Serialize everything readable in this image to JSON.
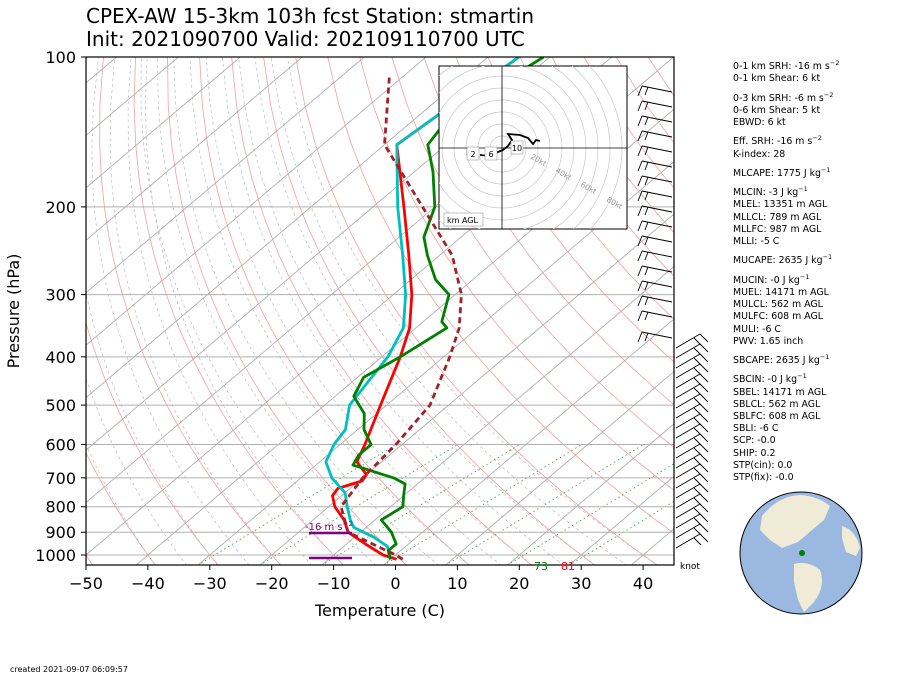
{
  "title_line1": "CPEX-AW 15-3km  103h fcst  Station: stmartin",
  "title_line2": "Init: 2021090700  Valid: 202109110700 UTC",
  "created": "created 2021-09-07 06:09:57",
  "chart_data": {
    "type": "line",
    "subtype": "skew-t log-p",
    "xlabel": "Temperature (C)",
    "ylabel": "Pressure (hPa)",
    "x_ticks": [
      -50,
      -40,
      -30,
      -20,
      -10,
      0,
      10,
      20,
      30,
      40
    ],
    "y_ticks": [
      100,
      200,
      300,
      400,
      500,
      600,
      700,
      800,
      900,
      1000
    ],
    "xlim": [
      -50,
      45
    ],
    "ylim": [
      1050,
      100
    ],
    "y_scale": "log",
    "grid": true,
    "series": [
      {
        "color": "#ff0000",
        "points": [
          [
            -25,
            100
          ],
          [
            -28,
            150
          ],
          [
            -15,
            200
          ],
          [
            -5,
            250
          ],
          [
            3,
            300
          ],
          [
            9,
            350
          ],
          [
            13,
            400
          ],
          [
            19,
            500
          ],
          [
            24,
            600
          ],
          [
            26,
            650
          ],
          [
            30,
            690
          ],
          [
            30.5,
            710
          ],
          [
            28,
            735
          ],
          [
            28.5,
            760
          ],
          [
            31,
            800
          ],
          [
            35,
            850
          ],
          [
            38,
            900
          ],
          [
            43,
            950
          ],
          [
            48,
            1000
          ],
          [
            51,
            1020
          ]
        ]
      },
      {
        "color": "#00bfbf",
        "points": [
          [
            -25,
            100
          ],
          [
            -28,
            150
          ],
          [
            -16,
            200
          ],
          [
            -6,
            250
          ],
          [
            2,
            300
          ],
          [
            8,
            350
          ],
          [
            11,
            400
          ],
          [
            14,
            500
          ],
          [
            18,
            560
          ],
          [
            19,
            600
          ],
          [
            21,
            650
          ],
          [
            25,
            700
          ],
          [
            30,
            750
          ],
          [
            33,
            800
          ],
          [
            36,
            850
          ],
          [
            38,
            880
          ],
          [
            43,
            920
          ],
          [
            47,
            960
          ],
          [
            49,
            1000
          ],
          [
            50,
            1020
          ]
        ]
      },
      {
        "color": "#008000",
        "points": [
          [
            -21,
            100
          ],
          [
            -25,
            130
          ],
          [
            -23,
            150
          ],
          [
            -17,
            170
          ],
          [
            -10,
            200
          ],
          [
            -6,
            230
          ],
          [
            -2,
            250
          ],
          [
            4,
            280
          ],
          [
            9,
            300
          ],
          [
            13,
            340
          ],
          [
            15,
            350
          ],
          [
            13,
            400
          ],
          [
            11,
            440
          ],
          [
            13,
            480
          ],
          [
            18,
            520
          ],
          [
            21,
            560
          ],
          [
            25,
            600
          ],
          [
            25,
            630
          ],
          [
            26,
            660
          ],
          [
            35,
            700
          ],
          [
            38,
            720
          ],
          [
            40,
            760
          ],
          [
            42,
            800
          ],
          [
            41,
            850
          ],
          [
            45,
            900
          ],
          [
            48,
            950
          ],
          [
            48,
            980
          ],
          [
            50,
            1020
          ]
        ]
      },
      {
        "color": "#a0222a",
        "dash": "6,4",
        "points": [
          [
            -42,
            110
          ],
          [
            -30,
            150
          ],
          [
            -12,
            200
          ],
          [
            2,
            250
          ],
          [
            11,
            300
          ],
          [
            17,
            350
          ],
          [
            21,
            400
          ],
          [
            27,
            500
          ],
          [
            29,
            600
          ],
          [
            30,
            700
          ],
          [
            32,
            800
          ],
          [
            38,
            900
          ],
          [
            50,
            1000
          ],
          [
            52,
            1020
          ]
        ]
      }
    ],
    "hodograph": {
      "range_labels": [
        "20kt",
        "40kt",
        "60kt",
        "80kt"
      ],
      "height_labels": [
        "2",
        "6",
        "10"
      ],
      "legend": "km AGL"
    },
    "srh_markers": [
      {
        "label": "-16 m s",
        "exponent": "−2",
        "color": "#800080"
      }
    ],
    "surface_labels": [
      {
        "text": "73",
        "color": "#008000"
      },
      {
        "text": "81",
        "color": "#ff0000"
      }
    ],
    "barb_unit": "knot"
  },
  "indices": [
    {
      "text": "0-1 km SRH: -16 m s",
      "sup": "−2",
      "gap": false
    },
    {
      "text": "0-1 km Shear: 6 kt",
      "gap": false
    },
    {
      "text": "0-3 km SRH: -6 m s",
      "sup": "−2",
      "gap": true
    },
    {
      "text": "0-6 km Shear: 5 kt",
      "gap": false
    },
    {
      "text": "EBWD: 6 kt",
      "gap": false
    },
    {
      "text": "Eff. SRH: -16 m s",
      "sup": "−2",
      "gap": true
    },
    {
      "text": "K-index: 28",
      "gap": false
    },
    {
      "text": "MLCAPE: 1775 J kg",
      "sup": "−1",
      "gap": true
    },
    {
      "text": "MLCIN: -3 J kg",
      "sup": "−1",
      "gap": true
    },
    {
      "text": "MLEL: 13351 m AGL",
      "gap": false
    },
    {
      "text": "MLLCL: 789 m AGL",
      "gap": false
    },
    {
      "text": "MLLFC: 987 m AGL",
      "gap": false
    },
    {
      "text": "MLLI: -5 C",
      "gap": false
    },
    {
      "text": "MUCAPE: 2635 J kg",
      "sup": "−1",
      "gap": true
    },
    {
      "text": "MUCIN: -0 J kg",
      "sup": "−1",
      "gap": true
    },
    {
      "text": "MUEL: 14171 m AGL",
      "gap": false
    },
    {
      "text": "MULCL: 562 m AGL",
      "gap": false
    },
    {
      "text": "MULFC: 608 m AGL",
      "gap": false
    },
    {
      "text": "MULI: -6 C",
      "gap": false
    },
    {
      "text": "PWV: 1.65 inch",
      "gap": false
    },
    {
      "text": "SBCAPE: 2635 J kg",
      "sup": "−1",
      "gap": true
    },
    {
      "text": "SBCIN: -0 J kg",
      "sup": "−1",
      "gap": true
    },
    {
      "text": "SBEL: 14171 m AGL",
      "gap": false
    },
    {
      "text": "SBLCL: 562 m AGL",
      "gap": false
    },
    {
      "text": "SBLFC: 608 m AGL",
      "gap": false
    },
    {
      "text": "SBLI: -6 C",
      "gap": false
    },
    {
      "text": "SCP: -0.0",
      "gap": false
    },
    {
      "text": "SHIP: 0.2",
      "gap": false
    },
    {
      "text": "STP(cin): 0.0",
      "gap": false
    },
    {
      "text": "STP(fix): -0.0",
      "gap": false
    }
  ],
  "colors": {
    "temperature": "#ff0000",
    "dewpoint": "#008000",
    "wetbulb": "#00bfbf",
    "parcel": "#a0222a",
    "srh": "#800080",
    "land": "#efebd7",
    "ocean": "#9ab8e0"
  }
}
